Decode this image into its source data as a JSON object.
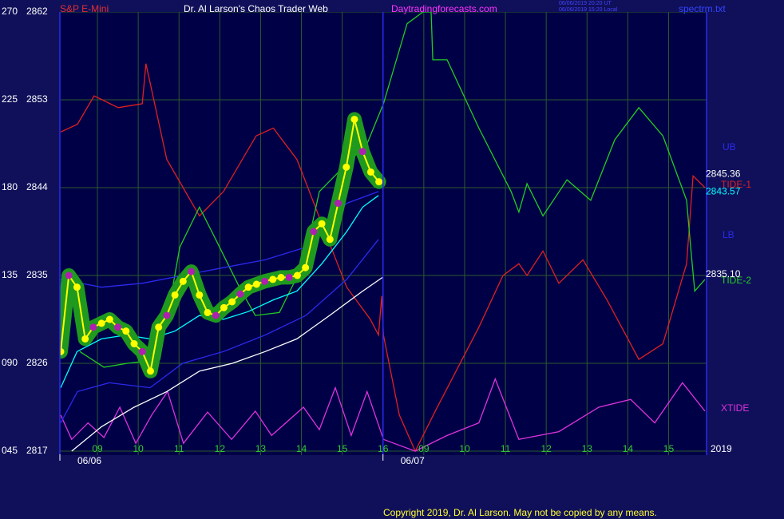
{
  "header": {
    "instrument": "S&P E-Mini",
    "title": "Dr. Al Larson's Chaos Trader Web",
    "site": "Daytradingforecasts.com",
    "time_ut": "06/06/2019 20:20 UT",
    "time_local": "06/06/2019 15:20 Local",
    "file": "spectrm.txt"
  },
  "footer": {
    "copyright": "Copyright 2019, Dr. Al Larson. May not be copied by any means.",
    "year": "2019"
  },
  "chart_data": {
    "type": "line",
    "xlim": [
      8.08,
      23.93
    ],
    "xticks": [
      {
        "value": 9,
        "label": "09"
      },
      10,
      11,
      12,
      13,
      14,
      15,
      16,
      {
        "value": 17,
        "label": "09"
      },
      {
        "value": 18,
        "label": "10"
      },
      {
        "value": 19,
        "label": "11"
      },
      {
        "value": 20,
        "label": "12"
      },
      {
        "value": 21,
        "label": "13"
      },
      {
        "value": 22,
        "label": "14"
      },
      {
        "value": 23,
        "label": "15"
      }
    ],
    "xdates": [
      {
        "value": 8.08,
        "label": "06/06"
      },
      {
        "value": 16.0,
        "label": "06/07"
      }
    ],
    "ylim": [
      2817,
      2862
    ],
    "yticks": [
      2817,
      2826,
      2835,
      2844,
      2853,
      2862
    ],
    "y2lim": [
      45,
      270
    ],
    "y2ticks": [
      {
        "value": 45,
        "label": "045"
      },
      {
        "value": 90,
        "label": "090"
      },
      135,
      180,
      225,
      270
    ],
    "grid": true,
    "series": [
      {
        "name": "TIDE-1",
        "color": "#e02020",
        "x": [
          8.1,
          8.51,
          8.92,
          9.51,
          10.1,
          10.19,
          10.7,
          11.5,
          12.09,
          12.89,
          13.31,
          13.89,
          14.5,
          15.11,
          15.69,
          15.89,
          15.97,
          16.01,
          16.4,
          16.79,
          17.28,
          18.35,
          18.94,
          19.33,
          19.53,
          19.92,
          20.31,
          20.9,
          21.49,
          22.27,
          22.86,
          23.44,
          23.6,
          23.89
        ],
        "values": [
          2849.7,
          2850.5,
          2853.4,
          2852.2,
          2852.6,
          2856.7,
          2846.9,
          2841.1,
          2843.6,
          2849.3,
          2850.1,
          2846.9,
          2840.3,
          2833.8,
          2830.5,
          2828.9,
          2832.9,
          2828.9,
          2820.7,
          2817.0,
          2821.1,
          2829.7,
          2835.0,
          2836.2,
          2835.0,
          2837.5,
          2834.2,
          2836.6,
          2832.5,
          2826.4,
          2828.0,
          2836.2,
          2845.2,
          2844.0
        ]
      },
      {
        "name": "TIDE-2",
        "color": "#22cc22",
        "x": [
          8.57,
          9.16,
          9.74,
          10.53,
          11.02,
          11.5,
          11.9,
          12.48,
          12.87,
          13.46,
          14.05,
          14.44,
          15.03,
          15.61,
          16.01,
          16.59,
          16.98,
          17.18,
          17.22,
          17.57,
          18.35,
          19.14,
          19.33,
          19.53,
          19.92,
          20.51,
          21.09,
          21.68,
          22.27,
          22.86,
          23.44,
          23.54,
          23.64,
          23.89
        ],
        "values": [
          2827.2,
          2825.6,
          2826.0,
          2826.4,
          2837.9,
          2842.0,
          2838.7,
          2833.8,
          2830.9,
          2831.2,
          2836.2,
          2843.6,
          2846.1,
          2848.5,
          2852.6,
          2860.8,
          2862.0,
          2862.0,
          2857.1,
          2857.1,
          2850.1,
          2843.6,
          2841.5,
          2844.4,
          2841.1,
          2844.8,
          2842.7,
          2848.9,
          2852.2,
          2849.3,
          2842.7,
          2837.9,
          2833.4,
          2834.6
        ]
      },
      {
        "name": "XTIDE",
        "color": "#dd33dd",
        "x": [
          8.1,
          8.37,
          8.77,
          9.16,
          9.55,
          9.94,
          10.33,
          10.72,
          11.11,
          11.7,
          12.29,
          12.87,
          13.27,
          14.05,
          14.44,
          14.83,
          15.22,
          15.61,
          16.01,
          16.79,
          17.57,
          18.35,
          18.75,
          19.33,
          20.31,
          21.29,
          22.07,
          22.66,
          23.34,
          23.89
        ],
        "values": [
          2820.7,
          2818.2,
          2819.9,
          2818.4,
          2821.5,
          2817.8,
          2820.7,
          2823.1,
          2817.8,
          2821.0,
          2818.2,
          2821.1,
          2818.6,
          2821.5,
          2819.2,
          2823.5,
          2818.6,
          2823.1,
          2818.2,
          2817.0,
          2818.6,
          2819.9,
          2824.4,
          2818.2,
          2819.0,
          2821.5,
          2822.3,
          2819.9,
          2824.0,
          2821.1
        ]
      },
      {
        "name": "UB",
        "color": "#2a2aee",
        "x": [
          8.1,
          9.1,
          10.1,
          11.09,
          12.09,
          13.11,
          14.11,
          15.11,
          15.89
        ],
        "values": [
          2834.6,
          2833.8,
          2834.2,
          2835.0,
          2835.8,
          2836.6,
          2837.9,
          2842.4,
          2843.6
        ]
      },
      {
        "name": "LB",
        "color": "#2a2aee",
        "x": [
          8.1,
          8.51,
          9.29,
          10.29,
          11.09,
          12.09,
          13.11,
          14.11,
          15.11,
          15.89
        ],
        "values": [
          2819.9,
          2823.1,
          2824.0,
          2823.5,
          2826.0,
          2827.2,
          2828.9,
          2830.9,
          2834.6,
          2838.7
        ]
      },
      {
        "color": "#ffffff",
        "x": [
          8.37,
          9.1,
          9.9,
          10.7,
          11.5,
          12.31,
          13.11,
          13.89,
          14.69,
          15.5,
          15.99
        ],
        "values": [
          2817.0,
          2819.5,
          2821.5,
          2823.1,
          2825.2,
          2826.0,
          2827.2,
          2828.5,
          2830.9,
          2833.4,
          2834.8
        ]
      },
      {
        "color": "#00ffff",
        "x": [
          8.1,
          8.5,
          9.1,
          9.7,
          10.29,
          10.9,
          11.5,
          12.09,
          12.7,
          13.31,
          13.89,
          14.5,
          15.11,
          15.5,
          15.89
        ],
        "values": [
          2823.5,
          2827.2,
          2828.5,
          2828.9,
          2828.5,
          2829.3,
          2830.9,
          2830.5,
          2831.3,
          2832.5,
          2833.4,
          2836.2,
          2839.5,
          2842.0,
          2843.2
        ]
      },
      {
        "color": "#ffff00",
        "halo": "#1f9a1f",
        "x": [
          8.1,
          8.3,
          8.5,
          8.7,
          8.9,
          9.1,
          9.3,
          9.5,
          9.7,
          9.9,
          10.1,
          10.3,
          10.5,
          10.7,
          10.9,
          11.1,
          11.3,
          11.5,
          11.7,
          11.9,
          12.1,
          12.3,
          12.5,
          12.7,
          12.9,
          13.1,
          13.3,
          13.5,
          13.7,
          13.9,
          14.1,
          14.3,
          14.5,
          14.7,
          14.9,
          15.1,
          15.3,
          15.5,
          15.7,
          15.9
        ],
        "values": [
          2827.2,
          2835.0,
          2833.8,
          2828.5,
          2829.7,
          2830.1,
          2830.5,
          2829.7,
          2829.3,
          2828.0,
          2827.2,
          2825.2,
          2829.7,
          2830.9,
          2833.0,
          2834.4,
          2835.4,
          2833.0,
          2831.2,
          2830.9,
          2831.7,
          2832.3,
          2833.1,
          2833.8,
          2834.1,
          2834.4,
          2834.6,
          2834.8,
          2834.8,
          2835.0,
          2835.8,
          2839.5,
          2840.3,
          2838.7,
          2842.4,
          2846.1,
          2851.0,
          2847.7,
          2845.6,
          2844.6
        ]
      }
    ],
    "price_labels": {
      "values": [
        2845.36,
        2843.57,
        2835.1
      ],
      "value_labels": [
        "2845.36",
        "2843.57",
        "2835.10"
      ],
      "colors": [
        "#ffffff",
        "#00ffff",
        "#ffffff"
      ]
    }
  }
}
